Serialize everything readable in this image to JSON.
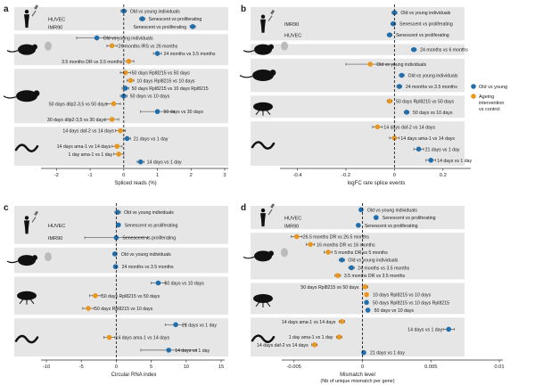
{
  "colors": {
    "old_vs_young": "#1f6fae",
    "intervention": "#e8961e",
    "band": "#e6e6e6",
    "zero_line": "#222222",
    "axis": "#333333"
  },
  "legend": {
    "items": [
      {
        "label": "Old vs young",
        "color": "#1f6fae"
      },
      {
        "label": "Ageing intervention vs control",
        "color": "#e8961e"
      }
    ]
  },
  "chart_data": [
    {
      "panel": "a",
      "type": "scatter",
      "xlabel": "Spliced reads (%)",
      "xlim": [
        -2.3,
        3
      ],
      "xticks": [
        -2,
        -1,
        0,
        1,
        2,
        3
      ],
      "groups": [
        {
          "organism": "human",
          "rows": [
            {
              "label": "Old vs young individuals",
              "value": 0.0,
              "err": 0.08,
              "series": "old_vs_young",
              "side": "right"
            },
            {
              "label": "Senescent vs proliferating",
              "value": 0.55,
              "err": 0.08,
              "series": "old_vs_young",
              "side": "right"
            },
            {
              "label": "Senescent vs proliferating",
              "value": 2.05,
              "err": 0.08,
              "series": "old_vs_young",
              "side": "left"
            }
          ],
          "sublabels": [
            "HUVEC",
            "IMR90"
          ]
        },
        {
          "organism": "mouse",
          "rows": [
            {
              "label": "Old vs young individuals",
              "value": -0.8,
              "err": 0.6,
              "series": "old_vs_young",
              "side": "right"
            },
            {
              "label": "26 months IRS vs 26 months",
              "value": -0.35,
              "err": 0.15,
              "series": "intervention",
              "side": "right"
            },
            {
              "label": "24 months vs 3.5 months",
              "value": 1.0,
              "err": 0.12,
              "series": "old_vs_young",
              "side": "right"
            },
            {
              "label": "3.5 months DR vs 3.5 months",
              "value": 0.15,
              "err": 0.15,
              "series": "intervention",
              "side": "left"
            }
          ]
        },
        {
          "organism": "rat",
          "rows": [
            {
              "label": "50 days Rpl8215 vs 50 days",
              "value": 0.05,
              "err": 0.15,
              "series": "intervention",
              "side": "right"
            },
            {
              "label": "10 days Rpl8215 vs 10 days",
              "value": 0.2,
              "err": 0.1,
              "series": "intervention",
              "side": "right"
            },
            {
              "label": "50 days Rpl8215 vs 10 days Rpl8215",
              "value": 0.05,
              "err": 0.1,
              "series": "old_vs_young",
              "side": "right"
            },
            {
              "label": "50 days vs 10 days",
              "value": 0.0,
              "err": 0.1,
              "series": "old_vs_young",
              "side": "right"
            },
            {
              "label": "50 days dilp2-3,5 vs 50 days",
              "value": -0.3,
              "err": 0.2,
              "series": "intervention",
              "side": "left"
            },
            {
              "label": "50 days vs 30 days",
              "value": 1.0,
              "err": 0.5,
              "series": "old_vs_young",
              "side": "right"
            },
            {
              "label": "30 days dilp2-3,5 vs 30 days",
              "value": -0.35,
              "err": 0.2,
              "series": "intervention",
              "side": "left"
            }
          ]
        },
        {
          "organism": "worm",
          "rows": [
            {
              "label": "14 days daf-2 vs 14 days",
              "value": -0.1,
              "err": 0.15,
              "series": "intervention",
              "side": "left"
            },
            {
              "label": "21 days vs 1 day",
              "value": 0.1,
              "err": 0.1,
              "series": "old_vs_young",
              "side": "right"
            },
            {
              "label": "14 days ama-1 vs 14 days",
              "value": -0.2,
              "err": 0.15,
              "series": "intervention",
              "side": "left"
            },
            {
              "label": "1 day ama-1 vs 1 day",
              "value": -0.15,
              "err": 0.15,
              "series": "intervention",
              "side": "left"
            },
            {
              "label": "14 days vs 1 day",
              "value": 0.5,
              "err": 0.1,
              "series": "old_vs_young",
              "side": "right"
            }
          ]
        }
      ]
    },
    {
      "panel": "b",
      "type": "scatter",
      "xlabel": "logFC rare splice events",
      "xlim": [
        -0.45,
        0.3
      ],
      "xticks": [
        -0.4,
        -0.2,
        0,
        0.2
      ],
      "groups": [
        {
          "organism": "human",
          "rows": [
            {
              "label": "Old vs young individuals",
              "value": 0.0,
              "err": 0.01,
              "series": "old_vs_young",
              "side": "right"
            },
            {
              "label": "Senescent vs proliferating",
              "value": -0.005,
              "err": 0.01,
              "series": "old_vs_young",
              "side": "right"
            },
            {
              "label": "Senescent vs proliferating",
              "value": -0.02,
              "err": 0.01,
              "series": "old_vs_young",
              "side": "right"
            }
          ],
          "sublabels": [
            "IMR90",
            "HUVEC"
          ]
        },
        {
          "organism": "mouse",
          "rows": [
            {
              "label": "24 months vs 6 months",
              "value": 0.08,
              "err": 0.01,
              "series": "old_vs_young",
              "side": "right"
            }
          ]
        },
        {
          "organism": "rat",
          "rows": [
            {
              "label": "Old vs young individuals",
              "value": -0.1,
              "err": 0.1,
              "series": "intervention",
              "side": "right"
            },
            {
              "label": "Old vs young individuals",
              "value": 0.03,
              "err": 0.01,
              "series": "old_vs_young",
              "side": "right"
            },
            {
              "label": "24 months vs 3.5 months",
              "value": 0.02,
              "err": 0.01,
              "series": "old_vs_young",
              "side": "right"
            }
          ]
        },
        {
          "organism": "fly",
          "rows": [
            {
              "label": "50 days Rpl8215 vs 50 days",
              "value": -0.02,
              "err": 0.01,
              "series": "intervention",
              "side": "right"
            },
            {
              "label": "50 days vs 10 days",
              "value": 0.05,
              "err": 0.01,
              "series": "old_vs_young",
              "side": "right"
            }
          ]
        },
        {
          "organism": "worm",
          "rows": [
            {
              "label": "14 days daf-2 vs 14 days",
              "value": -0.07,
              "err": 0.02,
              "series": "intervention",
              "side": "right"
            },
            {
              "label": "14 days ama-1 vs 14 days",
              "value": 0.0,
              "err": 0.02,
              "series": "intervention",
              "side": "right"
            },
            {
              "label": "21 days vs 1 day",
              "value": 0.1,
              "err": 0.02,
              "series": "old_vs_young",
              "side": "right"
            },
            {
              "label": "14 days vs 1 day",
              "value": 0.15,
              "err": 0.02,
              "series": "old_vs_young",
              "side": "right"
            }
          ]
        }
      ]
    },
    {
      "panel": "c",
      "type": "scatter",
      "xlabel": "Circular RNA index",
      "xlim": [
        -10,
        15
      ],
      "xticks": [
        -10,
        -5,
        0,
        5,
        10,
        15
      ],
      "groups": [
        {
          "organism": "human",
          "rows": [
            {
              "label": "Old vs young individuals",
              "value": 0.2,
              "err": 0.4,
              "series": "old_vs_young",
              "side": "right"
            },
            {
              "label": "Senescent vs proliferating",
              "value": 0.3,
              "err": 0.3,
              "series": "old_vs_young",
              "side": "right"
            },
            {
              "label": "Senescent vs proliferating",
              "value": 0.0,
              "err": 4.5,
              "series": "old_vs_young",
              "side": "right"
            }
          ],
          "sublabels": [
            "HUVEC",
            "IMR90"
          ]
        },
        {
          "organism": "mouse",
          "rows": [
            {
              "label": "Old vs young individuals",
              "value": -0.2,
              "err": 0.3,
              "series": "old_vs_young",
              "side": "right"
            },
            {
              "label": "24 months vs 3.5 months",
              "value": -0.1,
              "err": 0.3,
              "series": "old_vs_young",
              "side": "right"
            }
          ]
        },
        {
          "organism": "fly",
          "rows": [
            {
              "label": "50 days vs 10 days",
              "value": 6.0,
              "err": 1.0,
              "series": "old_vs_young",
              "side": "right"
            },
            {
              "label": "50 days Rpl8215 vs 50 days",
              "value": -3.0,
              "err": 0.8,
              "series": "intervention",
              "side": "right"
            },
            {
              "label": "50 days Rpl8215 vs 10 days",
              "value": -4.0,
              "err": 0.8,
              "series": "intervention",
              "side": "right"
            }
          ]
        },
        {
          "organism": "worm",
          "rows": [
            {
              "label": "21 days vs 1 day",
              "value": 8.5,
              "err": 1.5,
              "series": "old_vs_young",
              "side": "right"
            },
            {
              "label": "14 days ama-1 vs 14 days",
              "value": -1.0,
              "err": 0.8,
              "series": "intervention",
              "side": "right"
            },
            {
              "label": "14 days vs 1 day",
              "value": 7.5,
              "err": 4.0,
              "series": "old_vs_young",
              "side": "right"
            }
          ]
        }
      ]
    },
    {
      "panel": "d",
      "type": "scatter",
      "xlabel": "Mismatch level",
      "xlabel2": "(Nb of unique mismatch per gene)",
      "xlim": [
        -0.0055,
        0.01
      ],
      "xticks": [
        -0.005,
        0,
        0.005,
        0.01
      ],
      "groups": [
        {
          "organism": "human",
          "rows": [
            {
              "label": "Old vs young individuals",
              "value": -0.0001,
              "err": 0.0001,
              "series": "old_vs_young",
              "side": "right"
            },
            {
              "label": "Senescent vs proliferating",
              "value": 0.001,
              "err": 0.00015,
              "series": "old_vs_young",
              "side": "right"
            },
            {
              "label": "Senescent vs proliferating",
              "value": -0.0003,
              "err": 0.0001,
              "series": "old_vs_young",
              "side": "right"
            }
          ],
          "sublabels": [
            "HUVEC",
            "IMR90"
          ]
        },
        {
          "organism": "mouse",
          "rows": [
            {
              "label": "26.5 months DR vs 26.5 months",
              "value": -0.0048,
              "err": 0.0004,
              "series": "intervention",
              "side": "right"
            },
            {
              "label": "16 months DR vs 16 months",
              "value": -0.0038,
              "err": 0.0003,
              "series": "intervention",
              "side": "right"
            },
            {
              "label": "5 months DR vs 5 months",
              "value": -0.0025,
              "err": 0.0003,
              "series": "intervention",
              "side": "right"
            },
            {
              "label": "Old vs young individuals",
              "value": -0.0015,
              "err": 0.0002,
              "series": "old_vs_young",
              "side": "right"
            },
            {
              "label": "24 months vs 3.5 months",
              "value": -0.0008,
              "err": 0.0002,
              "series": "old_vs_young",
              "side": "right"
            },
            {
              "label": "3.5 months DR vs 3.5 months",
              "value": -0.0018,
              "err": 0.0002,
              "series": "intervention",
              "side": "right"
            }
          ]
        },
        {
          "organism": "fly",
          "rows": [
            {
              "label": "50 days Rpl8215 vs 50 days",
              "value": 0.0002,
              "err": 0.0002,
              "series": "intervention",
              "side": "left"
            },
            {
              "label": "10 days Rpl8215 vs 10 days",
              "value": 0.0003,
              "err": 0.0001,
              "series": "intervention",
              "side": "right"
            },
            {
              "label": "50 days Rpl8215 vs 10 days Rpl8215",
              "value": 0.0003,
              "err": 0.0001,
              "series": "old_vs_young",
              "side": "right"
            },
            {
              "label": "50 days vs 10 days",
              "value": 0.0004,
              "err": 0.0001,
              "series": "old_vs_young",
              "side": "right"
            }
          ]
        },
        {
          "organism": "worm",
          "rows": [
            {
              "label": "14 days ama-1 vs 14 days",
              "value": -0.0015,
              "err": 0.0002,
              "series": "intervention",
              "side": "left"
            },
            {
              "label": "14 days vs 1 day",
              "value": 0.0063,
              "err": 0.0004,
              "series": "old_vs_young",
              "side": "left"
            },
            {
              "label": "1 day ama-1 vs 1 day",
              "value": -0.0017,
              "err": 0.0002,
              "series": "intervention",
              "side": "left"
            },
            {
              "label": "14 days daf-2 vs 14 days",
              "value": -0.0035,
              "err": 0.0002,
              "series": "intervention",
              "side": "left"
            },
            {
              "label": "21 days vs 1 day",
              "value": 0.0001,
              "err": 0.0001,
              "series": "old_vs_young",
              "side": "right"
            }
          ]
        }
      ]
    }
  ]
}
